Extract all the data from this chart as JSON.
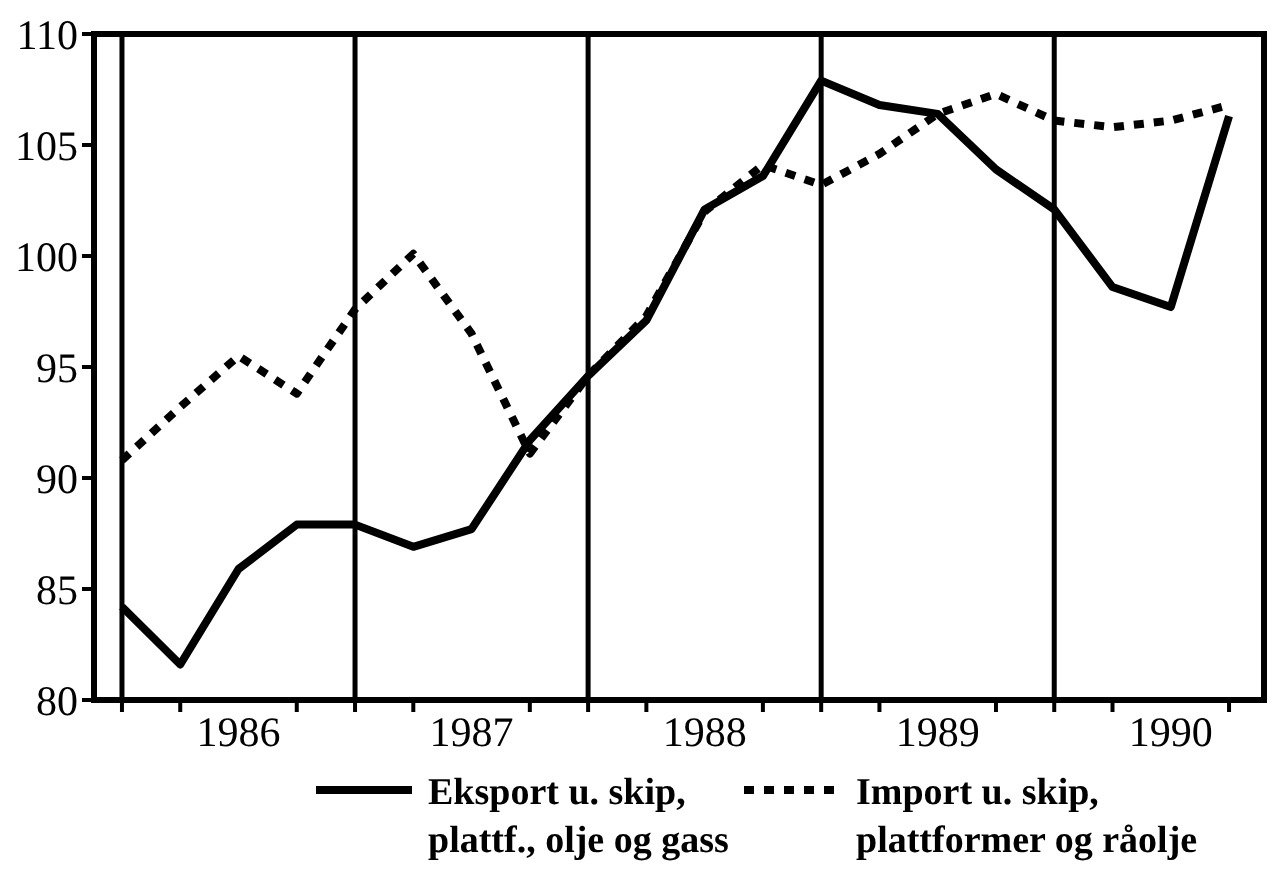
{
  "chart_data": {
    "type": "line",
    "x": [
      1986,
      1986.25,
      1986.5,
      1986.75,
      1987,
      1987.25,
      1987.5,
      1987.75,
      1988,
      1988.25,
      1988.5,
      1988.75,
      1989,
      1989.25,
      1989.5,
      1989.75,
      1990,
      1990.25,
      1990.5,
      1990.75
    ],
    "series": [
      {
        "name": "Eksport u. skip, plattf., olje og gass",
        "color": "#000000",
        "line_style": "solid",
        "values": [
          84.2,
          81.6,
          85.9,
          87.9,
          87.9,
          86.9,
          87.7,
          91.7,
          94.6,
          97.1,
          102.1,
          103.6,
          107.9,
          106.8,
          106.4,
          103.9,
          102.1,
          98.6,
          97.7,
          106.3
        ]
      },
      {
        "name": "Import u. skip, plattformer og råolje",
        "color": "#000000",
        "line_style": "dotted",
        "values": [
          90.8,
          93.2,
          95.5,
          93.8,
          97.6,
          100.1,
          96.5,
          91.1,
          94.6,
          97.3,
          102.0,
          104.1,
          103.2,
          104.6,
          106.4,
          107.3,
          106.1,
          105.8,
          106.1,
          106.8
        ]
      }
    ],
    "xlim": [
      1985.88,
      1990.9
    ],
    "xticks": [
      {
        "value": 1986,
        "label": null
      },
      {
        "value": 1986.25,
        "label": null
      },
      {
        "value": 1986.5,
        "label": "1986"
      },
      {
        "value": 1986.75,
        "label": null
      },
      {
        "value": 1987,
        "label": null
      },
      {
        "value": 1987.25,
        "label": null
      },
      {
        "value": 1987.5,
        "label": "1987"
      },
      {
        "value": 1987.75,
        "label": null
      },
      {
        "value": 1988,
        "label": null
      },
      {
        "value": 1988.25,
        "label": null
      },
      {
        "value": 1988.5,
        "label": "1988"
      },
      {
        "value": 1988.75,
        "label": null
      },
      {
        "value": 1989,
        "label": null
      },
      {
        "value": 1989.25,
        "label": null
      },
      {
        "value": 1989.5,
        "label": "1989"
      },
      {
        "value": 1989.75,
        "label": null
      },
      {
        "value": 1990,
        "label": null
      },
      {
        "value": 1990.25,
        "label": null
      },
      {
        "value": 1990.5,
        "label": "1990"
      },
      {
        "value": 1990.75,
        "label": null
      }
    ],
    "ylim": [
      80,
      110
    ],
    "yticks": [
      80,
      85,
      90,
      95,
      100,
      105,
      110
    ],
    "ref_lines": [
      {
        "axis": "x",
        "value": 1986
      },
      {
        "axis": "x",
        "value": 1987
      },
      {
        "axis": "x",
        "value": 1988
      },
      {
        "axis": "x",
        "value": 1989
      },
      {
        "axis": "x",
        "value": 1990
      }
    ],
    "legend": "bottom"
  }
}
